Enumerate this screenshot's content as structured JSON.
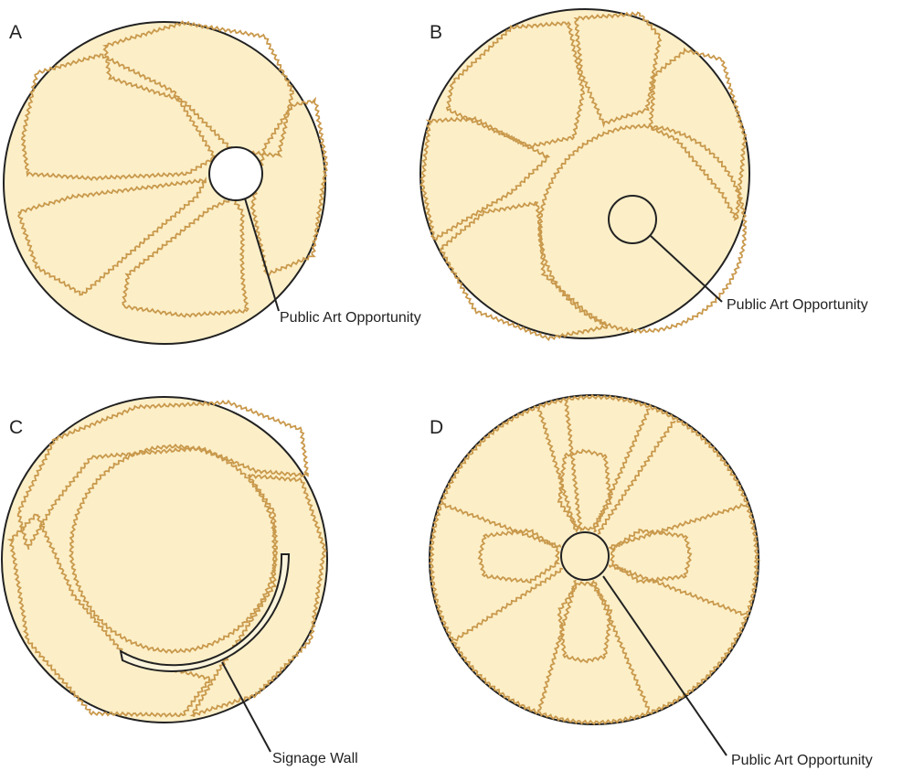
{
  "panels": [
    {
      "label": "A",
      "callout": "Public Art Opportunity"
    },
    {
      "label": "B",
      "callout": "Public Art Opportunity"
    },
    {
      "label": "C",
      "callout": "Signage Wall"
    },
    {
      "label": "D",
      "callout": "Public Art Opportunity"
    }
  ]
}
